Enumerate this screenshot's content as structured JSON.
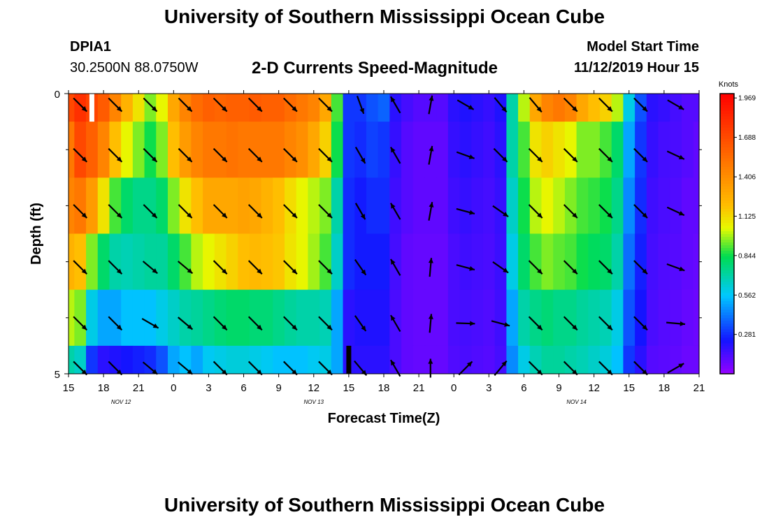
{
  "header": {
    "title": "University of Southern Mississippi Ocean Cube",
    "station_id": "DPIA1",
    "coordinates": "30.2500N 88.0750W",
    "chart_title": "2-D Currents Speed-Magnitude",
    "model_start_label": "Model Start Time",
    "model_start_value": "11/12/2019 Hour 15"
  },
  "footer": {
    "title": "University of Southern Mississippi Ocean Cube"
  },
  "chart_data": {
    "type": "heatmap",
    "title": "2-D Currents Speed-Magnitude",
    "xlabel": "Forecast Time(Z)",
    "ylabel": "Depth (ft)",
    "x_hours_range": [
      0,
      54
    ],
    "ylim": [
      0,
      5
    ],
    "x_ticks": [
      {
        "hour": 0,
        "label": "15"
      },
      {
        "hour": 3,
        "label": "18"
      },
      {
        "hour": 6,
        "label": "21"
      },
      {
        "hour": 9,
        "label": "0"
      },
      {
        "hour": 12,
        "label": "3"
      },
      {
        "hour": 15,
        "label": "6"
      },
      {
        "hour": 18,
        "label": "9"
      },
      {
        "hour": 21,
        "label": "12"
      },
      {
        "hour": 24,
        "label": "15"
      },
      {
        "hour": 27,
        "label": "18"
      },
      {
        "hour": 30,
        "label": "21"
      },
      {
        "hour": 33,
        "label": "0"
      },
      {
        "hour": 36,
        "label": "3"
      },
      {
        "hour": 39,
        "label": "6"
      },
      {
        "hour": 42,
        "label": "9"
      },
      {
        "hour": 45,
        "label": "12"
      },
      {
        "hour": 48,
        "label": "15"
      },
      {
        "hour": 51,
        "label": "18"
      },
      {
        "hour": 54,
        "label": "21"
      }
    ],
    "day_labels": [
      {
        "hour": 4.5,
        "label": "NOV 12"
      },
      {
        "hour": 21,
        "label": "NOV 13"
      },
      {
        "hour": 43.5,
        "label": "NOV 14"
      }
    ],
    "y_ticks": [
      {
        "depth": 0,
        "label": "0"
      },
      {
        "depth": 5,
        "label": "5"
      }
    ],
    "y_minor_ticks": [
      1,
      2,
      3,
      4
    ],
    "colorbar": {
      "unit": "Knots",
      "min": 0.0,
      "max": 2.0,
      "tick_values": [
        1.969,
        1.688,
        1.406,
        1.125,
        0.844,
        0.562,
        0.281
      ],
      "tick_labels": [
        "1.969",
        "1.688",
        "1.406",
        "1.125",
        "0.844",
        "0.562",
        "0.281"
      ]
    },
    "layer_depths": [
      [
        0,
        0.5
      ],
      [
        0.5,
        1.5
      ],
      [
        1.5,
        2.5
      ],
      [
        2.5,
        3.5
      ],
      [
        3.5,
        4.5
      ],
      [
        4.5,
        5
      ]
    ],
    "speed_hours": [
      0,
      1,
      2,
      3,
      4,
      5,
      6,
      7,
      8,
      9,
      10,
      11,
      12,
      13,
      14,
      15,
      16,
      17,
      18,
      19,
      20,
      21,
      22,
      23,
      24,
      25,
      26,
      27,
      28,
      29,
      30,
      31,
      32,
      33,
      34,
      35,
      36,
      37,
      38,
      39,
      40,
      41,
      42,
      43,
      44,
      45,
      46,
      47,
      48,
      49,
      50,
      51,
      52,
      53,
      54
    ],
    "speed_rows": [
      [
        1.7,
        1.8,
        1.72,
        1.62,
        1.45,
        1.25,
        1.1,
        0.95,
        1.05,
        1.3,
        1.45,
        1.55,
        1.6,
        1.58,
        1.6,
        1.6,
        1.62,
        1.6,
        1.6,
        1.55,
        1.5,
        1.45,
        1.3,
        0.9,
        0.3,
        0.3,
        0.35,
        0.38,
        0.2,
        0.15,
        0.12,
        0.12,
        0.12,
        0.2,
        0.22,
        0.2,
        0.18,
        0.22,
        0.7,
        1.0,
        1.3,
        1.45,
        1.5,
        1.45,
        1.3,
        1.2,
        1.15,
        1.0,
        0.6,
        0.35,
        0.2,
        0.18,
        0.15,
        0.12,
        0.12
      ],
      [
        1.5,
        1.7,
        1.6,
        1.45,
        1.2,
        1.05,
        0.95,
        0.85,
        0.95,
        1.2,
        1.35,
        1.45,
        1.5,
        1.5,
        1.52,
        1.5,
        1.5,
        1.5,
        1.5,
        1.45,
        1.4,
        1.3,
        1.15,
        0.85,
        0.3,
        0.28,
        0.32,
        0.3,
        0.18,
        0.12,
        0.1,
        0.1,
        0.1,
        0.18,
        0.2,
        0.18,
        0.16,
        0.2,
        0.7,
        0.9,
        1.1,
        1.15,
        1.1,
        1.05,
        0.95,
        0.95,
        0.9,
        0.8,
        0.5,
        0.3,
        0.18,
        0.15,
        0.14,
        0.12,
        0.1
      ],
      [
        1.45,
        1.5,
        1.35,
        1.1,
        0.9,
        0.8,
        0.75,
        0.75,
        0.8,
        0.95,
        1.1,
        1.2,
        1.3,
        1.3,
        1.3,
        1.32,
        1.3,
        1.25,
        1.2,
        1.12,
        1.05,
        1.0,
        0.95,
        0.7,
        0.28,
        0.25,
        0.28,
        0.28,
        0.16,
        0.12,
        0.1,
        0.1,
        0.1,
        0.16,
        0.18,
        0.16,
        0.15,
        0.18,
        0.65,
        0.85,
        1.0,
        1.05,
        1.0,
        0.95,
        0.9,
        0.88,
        0.85,
        0.75,
        0.45,
        0.28,
        0.16,
        0.14,
        0.13,
        0.1,
        0.1
      ],
      [
        1.25,
        1.2,
        0.95,
        0.8,
        0.7,
        0.68,
        0.7,
        0.72,
        0.72,
        0.8,
        0.9,
        1.0,
        1.05,
        1.1,
        1.15,
        1.2,
        1.22,
        1.2,
        1.18,
        1.1,
        1.05,
        0.98,
        0.9,
        0.65,
        0.28,
        0.25,
        0.25,
        0.25,
        0.15,
        0.1,
        0.09,
        0.09,
        0.09,
        0.14,
        0.16,
        0.15,
        0.14,
        0.17,
        0.6,
        0.8,
        0.9,
        0.95,
        0.92,
        0.9,
        0.85,
        0.82,
        0.8,
        0.7,
        0.4,
        0.26,
        0.15,
        0.13,
        0.12,
        0.1,
        0.09
      ],
      [
        1.0,
        0.95,
        0.6,
        0.5,
        0.5,
        0.55,
        0.55,
        0.55,
        0.6,
        0.65,
        0.7,
        0.72,
        0.75,
        0.78,
        0.8,
        0.8,
        0.78,
        0.78,
        0.75,
        0.72,
        0.7,
        0.7,
        0.68,
        0.5,
        0.2,
        0.22,
        0.22,
        0.22,
        0.14,
        0.1,
        0.09,
        0.09,
        0.09,
        0.14,
        0.15,
        0.14,
        0.13,
        0.16,
        0.5,
        0.7,
        0.75,
        0.78,
        0.75,
        0.75,
        0.72,
        0.7,
        0.68,
        0.6,
        0.35,
        0.24,
        0.14,
        0.12,
        0.11,
        0.09,
        0.08
      ],
      [
        0.7,
        0.65,
        0.3,
        0.2,
        0.22,
        0.24,
        0.26,
        0.28,
        0.35,
        0.5,
        0.55,
        0.5,
        0.58,
        0.6,
        0.62,
        0.62,
        0.6,
        0.58,
        0.55,
        0.55,
        0.55,
        0.58,
        0.6,
        0.5,
        0.2,
        0.2,
        0.2,
        0.2,
        0.14,
        0.1,
        0.09,
        0.09,
        0.09,
        0.13,
        0.14,
        0.13,
        0.12,
        0.15,
        0.45,
        0.6,
        0.68,
        0.72,
        0.72,
        0.7,
        0.68,
        0.65,
        0.62,
        0.55,
        0.3,
        0.2,
        0.12,
        0.11,
        0.1,
        0.08,
        0.08
      ]
    ],
    "vector_hours": [
      1,
      4,
      7,
      10,
      13,
      16,
      19,
      22,
      25,
      28,
      31,
      34,
      37,
      40,
      43,
      46,
      49,
      52
    ],
    "vector_depths": [
      0.2,
      1.1,
      2.1,
      3.1,
      4.1,
      4.9
    ],
    "vector_directions_deg": [
      [
        135,
        135,
        135,
        135,
        135,
        135,
        135,
        135,
        160,
        330,
        10,
        120,
        140,
        140,
        135,
        135,
        135,
        120
      ],
      [
        135,
        135,
        135,
        135,
        135,
        135,
        135,
        135,
        150,
        330,
        10,
        110,
        135,
        135,
        135,
        135,
        135,
        115
      ],
      [
        135,
        135,
        135,
        135,
        135,
        135,
        135,
        135,
        150,
        330,
        10,
        105,
        125,
        135,
        135,
        135,
        135,
        115
      ],
      [
        135,
        135,
        130,
        130,
        135,
        135,
        135,
        135,
        145,
        330,
        5,
        105,
        125,
        135,
        135,
        135,
        135,
        110
      ],
      [
        135,
        135,
        120,
        130,
        135,
        135,
        135,
        135,
        145,
        330,
        5,
        92,
        105,
        135,
        135,
        135,
        135,
        95
      ],
      [
        135,
        135,
        130,
        130,
        135,
        135,
        135,
        135,
        140,
        330,
        0,
        45,
        40,
        135,
        135,
        135,
        135,
        60
      ]
    ],
    "markers": [
      {
        "hour": 2,
        "depth_range": [
          0,
          0.5
        ],
        "color": "#ffffff"
      },
      {
        "hour": 24,
        "depth_range": [
          4.5,
          5
        ],
        "color": "#000000"
      }
    ]
  }
}
